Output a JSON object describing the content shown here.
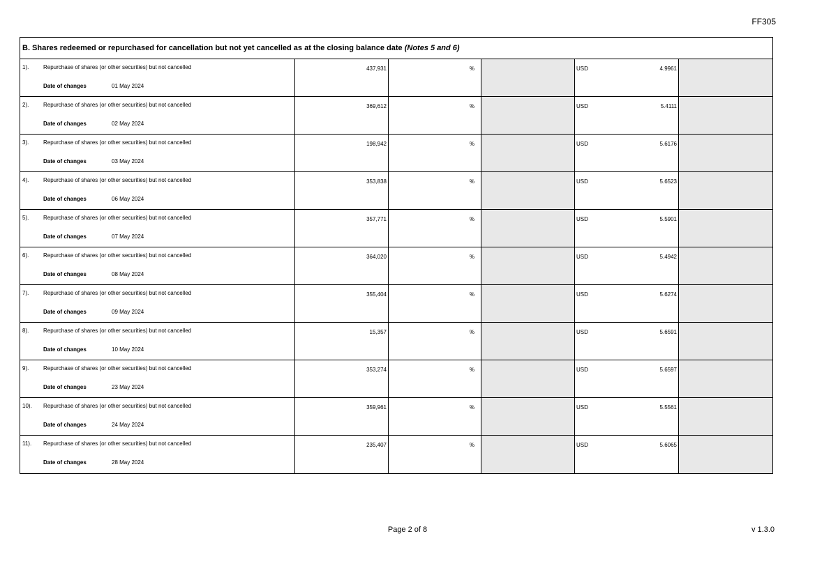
{
  "form_code": "FF305",
  "section": {
    "title": "B. Shares redeemed or repurchased for cancellation but not yet cancelled as at the closing balance date",
    "notes": "(Notes 5 and 6)"
  },
  "date_label": "Date of changes",
  "rows": [
    {
      "num": "1).",
      "desc": "Repurchase of shares (or other securities) but not cancelled",
      "quantity": "437,931",
      "pct": "%",
      "currency": "USD",
      "price": "4.9961",
      "date": "01 May 2024"
    },
    {
      "num": "2).",
      "desc": "Repurchase of shares (or other securities) but not cancelled",
      "quantity": "369,612",
      "pct": "%",
      "currency": "USD",
      "price": "5.4111",
      "date": "02 May 2024"
    },
    {
      "num": "3).",
      "desc": "Repurchase of shares (or other securities) but not cancelled",
      "quantity": "198,942",
      "pct": "%",
      "currency": "USD",
      "price": "5.6176",
      "date": "03 May 2024"
    },
    {
      "num": "4).",
      "desc": "Repurchase of shares (or other securities) but not cancelled",
      "quantity": "353,838",
      "pct": "%",
      "currency": "USD",
      "price": "5.6523",
      "date": "06 May 2024"
    },
    {
      "num": "5).",
      "desc": "Repurchase of shares (or other securities) but not cancelled",
      "quantity": "357,771",
      "pct": "%",
      "currency": "USD",
      "price": "5.5901",
      "date": "07 May 2024"
    },
    {
      "num": "6).",
      "desc": "Repurchase of shares (or other securities) but not cancelled",
      "quantity": "364,020",
      "pct": "%",
      "currency": "USD",
      "price": "5.4942",
      "date": "08 May 2024"
    },
    {
      "num": "7).",
      "desc": "Repurchase of shares (or other securities) but not cancelled",
      "quantity": "355,404",
      "pct": "%",
      "currency": "USD",
      "price": "5.6274",
      "date": "09 May 2024"
    },
    {
      "num": "8).",
      "desc": "Repurchase of shares (or other securities) but not cancelled",
      "quantity": "15,357",
      "pct": "%",
      "currency": "USD",
      "price": "5.6591",
      "date": "10 May 2024"
    },
    {
      "num": "9).",
      "desc": "Repurchase of shares (or other securities) but not cancelled",
      "quantity": "353,274",
      "pct": "%",
      "currency": "USD",
      "price": "5.6597",
      "date": "23 May 2024"
    },
    {
      "num": "10).",
      "desc": "Repurchase of shares (or other securities) but not cancelled",
      "quantity": "359,961",
      "pct": "%",
      "currency": "USD",
      "price": "5.5561",
      "date": "24 May 2024"
    },
    {
      "num": "11).",
      "desc": "Repurchase of shares (or other securities) but not cancelled",
      "quantity": "235,407",
      "pct": "%",
      "currency": "USD",
      "price": "5.6065",
      "date": "28 May 2024"
    }
  ],
  "footer": {
    "page": "Page 2 of 8",
    "version": "v 1.3.0"
  }
}
